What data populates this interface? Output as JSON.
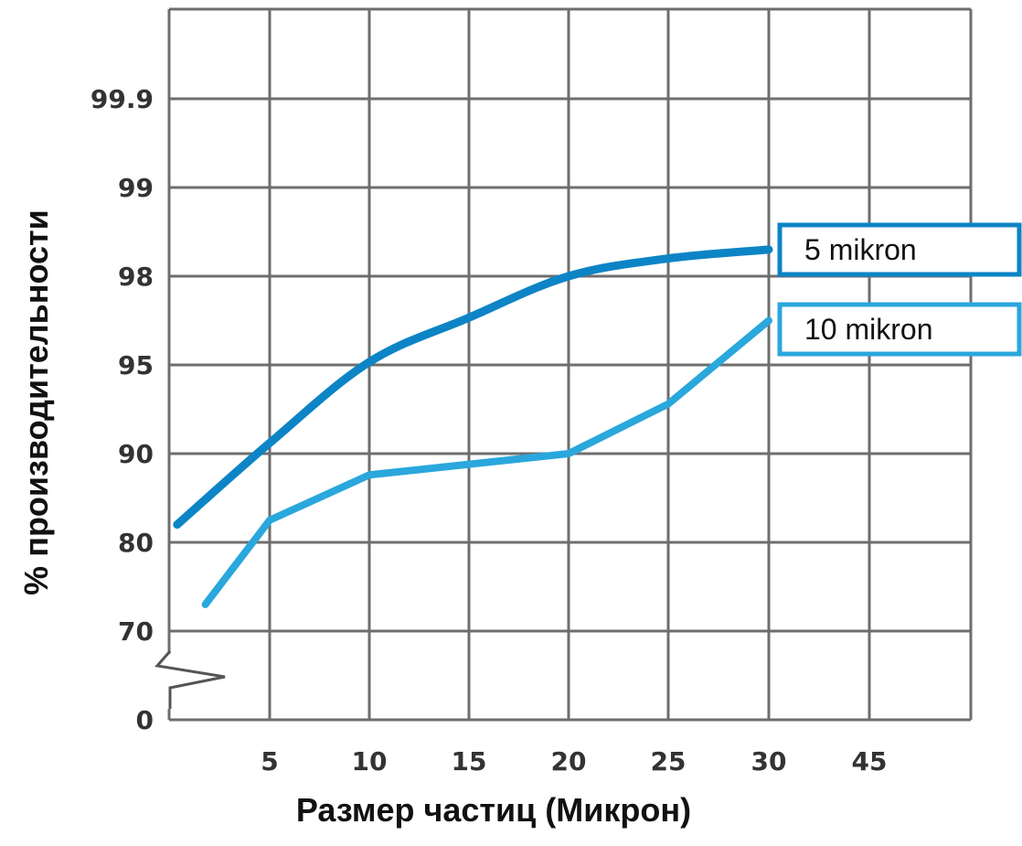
{
  "chart_data": {
    "type": "line",
    "title": "",
    "xlabel": "Размер частиц (Микрон)",
    "ylabel": "% производительности",
    "categories": [
      "5",
      "10",
      "15",
      "20",
      "25",
      "30",
      "45"
    ],
    "y_ticks": [
      "0",
      "70",
      "80",
      "90",
      "95",
      "98",
      "99",
      "99.9"
    ],
    "y_axis_break": true,
    "grid": true,
    "legend_position": "right",
    "series": [
      {
        "name": "5 mikron",
        "color": "#0d84c6",
        "points": [
          {
            "x": "0.4",
            "y": "82"
          },
          {
            "x": "5",
            "y": "90.6"
          },
          {
            "x": "10",
            "y": "95.1"
          },
          {
            "x": "15",
            "y": "96.6"
          },
          {
            "x": "20",
            "y": "98.0"
          },
          {
            "x": "25",
            "y": "98.2"
          },
          {
            "x": "30",
            "y": "98.3"
          }
        ]
      },
      {
        "name": "10 mikron",
        "color": "#2aa7dc",
        "points": [
          {
            "x": "1.8",
            "y": "73"
          },
          {
            "x": "5",
            "y": "82.5"
          },
          {
            "x": "10",
            "y": "87.6"
          },
          {
            "x": "15",
            "y": "88.8"
          },
          {
            "x": "20",
            "y": "90.0"
          },
          {
            "x": "25",
            "y": "92.8"
          },
          {
            "x": "30",
            "y": "96.5"
          }
        ]
      }
    ]
  }
}
